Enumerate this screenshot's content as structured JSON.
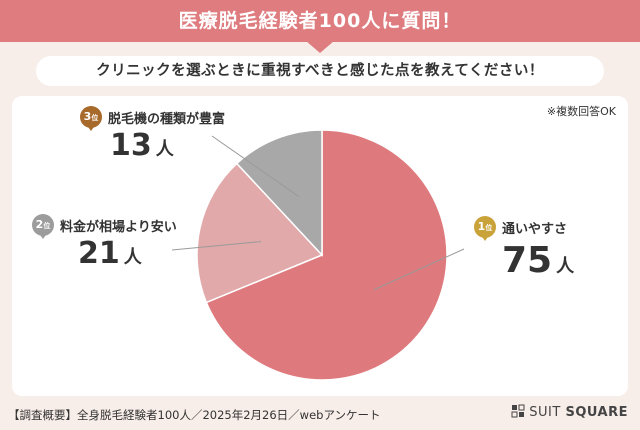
{
  "header": {
    "title": "医療脱毛経験者100人に質問！"
  },
  "question": "クリニックを選ぶときに重視すべきと感じた点を教えてください！",
  "note": "※複数回答OK",
  "chart_data": {
    "type": "pie",
    "slices": [
      {
        "rank": "1",
        "rank_suffix": "位",
        "label": "通いやすさ",
        "value": 75,
        "unit": "人",
        "color": "#de7a7d",
        "medal_color": "#c9a23a"
      },
      {
        "rank": "2",
        "rank_suffix": "位",
        "label": "料金が相場より安い",
        "value": 21,
        "unit": "人",
        "color": "#e2a9aa",
        "medal_color": "#9c9c9c"
      },
      {
        "rank": "3",
        "rank_suffix": "位",
        "label": "脱毛機の種類が豊富",
        "value": 13,
        "unit": "人",
        "color": "#a8a8a8",
        "medal_color": "#a86a2a"
      }
    ]
  },
  "footer": {
    "summary": "【調査概要】全身脱毛経験者100人／2025年2月26日／webアンケート",
    "logo_text_1": "SUIT",
    "logo_text_2": "SQUARE"
  }
}
